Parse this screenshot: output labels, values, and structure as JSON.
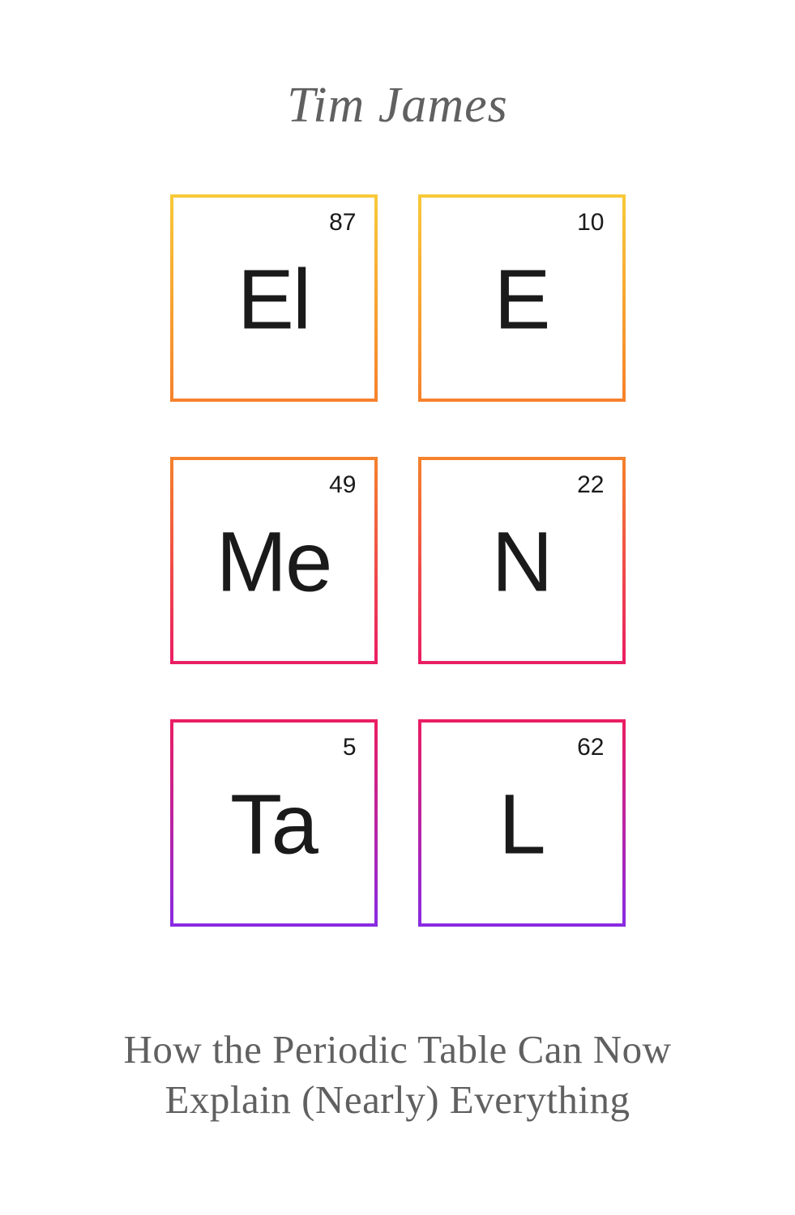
{
  "author": "Tim James",
  "subtitle_line1": "How the Periodic Table Can Now",
  "subtitle_line2": "Explain (Nearly) Everything",
  "gradient": {
    "top_color": "#f8c93a",
    "upper_mid_color": "#f89b2a",
    "mid_color": "#f0522d",
    "lower_mid_color": "#ea1e63",
    "bottom_color": "#8a2be2"
  },
  "tiles": [
    {
      "number": "87",
      "symbol": "El",
      "border_top": "#f8c93a",
      "border_bottom": "#f5822c"
    },
    {
      "number": "10",
      "symbol": "E",
      "border_top": "#f8c93a",
      "border_bottom": "#f5822c"
    },
    {
      "number": "49",
      "symbol": "Me",
      "border_top": "#f5822c",
      "border_bottom": "#ea1e63"
    },
    {
      "number": "22",
      "symbol": "N",
      "border_top": "#f5822c",
      "border_bottom": "#ea1e63"
    },
    {
      "number": "5",
      "symbol": "Ta",
      "border_top": "#ea1e63",
      "border_bottom": "#8a2be2"
    },
    {
      "number": "62",
      "symbol": "L",
      "border_top": "#ea1e63",
      "border_bottom": "#8a2be2"
    }
  ],
  "typography": {
    "author_fontsize": 62,
    "subtitle_fontsize": 49,
    "tile_number_fontsize": 30,
    "tile_symbol_fontsize": 105,
    "text_color": "#606060",
    "tile_text_color": "#1a1a1a"
  },
  "layout": {
    "tile_size": 256,
    "column_gap": 50,
    "row_gap": 68,
    "border_width": 4
  }
}
